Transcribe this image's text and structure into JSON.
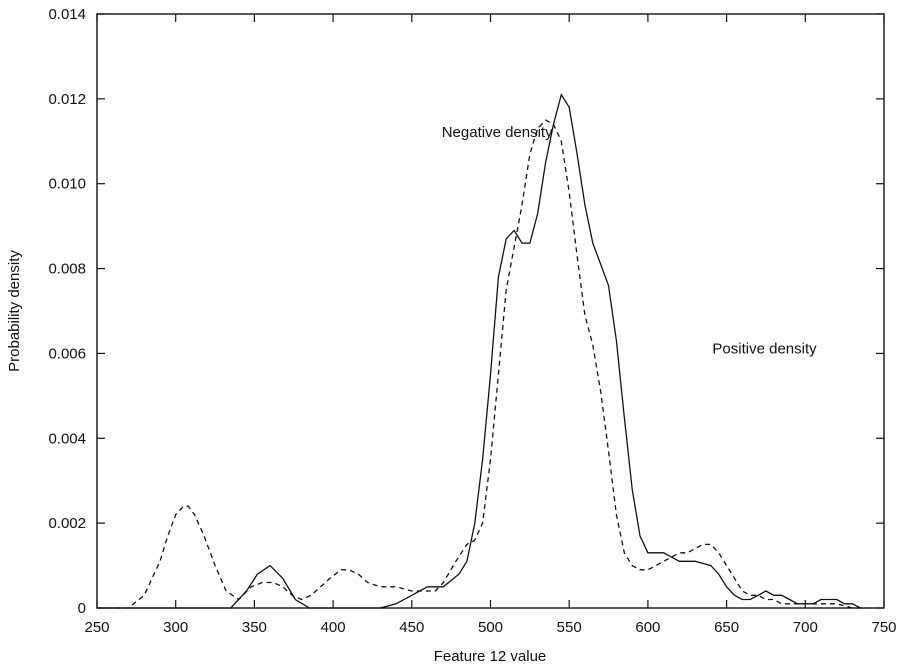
{
  "chart_data": {
    "type": "line",
    "title": "",
    "xlabel": "Feature 12 value",
    "ylabel": "Probability density",
    "xlim": [
      250,
      750
    ],
    "ylim": [
      0,
      0.014
    ],
    "grid": false,
    "legend": "none",
    "x_ticks": [
      250,
      300,
      350,
      400,
      450,
      500,
      550,
      600,
      650,
      700,
      750
    ],
    "y_ticks": [
      0,
      0.002,
      0.004,
      0.006,
      0.008,
      0.01,
      0.012,
      0.014
    ],
    "x_tick_labels": [
      "250",
      "300",
      "350",
      "400",
      "450",
      "500",
      "550",
      "600",
      "650",
      "700",
      "750"
    ],
    "y_tick_labels": [
      "0",
      "0.002",
      "0.004",
      "0.006",
      "0.008",
      "0.010",
      "0.012",
      "0.014"
    ],
    "series": [
      {
        "style": "solid",
        "color": "#111111",
        "x": [
          250,
          335,
          345,
          352,
          360,
          368,
          376,
          385,
          430,
          440,
          450,
          460,
          470,
          480,
          485,
          490,
          495,
          500,
          505,
          510,
          515,
          520,
          525,
          530,
          535,
          540,
          545,
          550,
          555,
          560,
          565,
          570,
          575,
          580,
          585,
          590,
          595,
          600,
          605,
          610,
          615,
          620,
          630,
          640,
          645,
          650,
          655,
          660,
          665,
          670,
          675,
          680,
          685,
          690,
          695,
          700,
          705,
          710,
          715,
          720,
          725,
          730,
          735
        ],
        "y": [
          0,
          0,
          0.0004,
          0.0008,
          0.001,
          0.0007,
          0.0002,
          0,
          0,
          0.0001,
          0.0003,
          0.0005,
          0.0005,
          0.0008,
          0.0011,
          0.002,
          0.0035,
          0.0055,
          0.0078,
          0.0087,
          0.0089,
          0.0086,
          0.0086,
          0.0093,
          0.0105,
          0.0114,
          0.0121,
          0.0118,
          0.0107,
          0.0095,
          0.0086,
          0.0081,
          0.0076,
          0.0063,
          0.0045,
          0.0028,
          0.0017,
          0.0013,
          0.0013,
          0.0013,
          0.0012,
          0.0011,
          0.0011,
          0.001,
          0.0008,
          0.0005,
          0.0003,
          0.0002,
          0.0002,
          0.0003,
          0.0004,
          0.0003,
          0.0003,
          0.0002,
          0.0001,
          0.0001,
          0.0001,
          0.0002,
          0.0002,
          0.0002,
          0.0001,
          0.0001,
          0
        ]
      },
      {
        "style": "dashed",
        "color": "#111111",
        "x": [
          250,
          270,
          280,
          290,
          295,
          300,
          305,
          308,
          312,
          318,
          325,
          332,
          340,
          348,
          355,
          362,
          368,
          374,
          380,
          386,
          392,
          398,
          405,
          410,
          416,
          422,
          430,
          440,
          450,
          460,
          465,
          470,
          478,
          485,
          490,
          495,
          500,
          505,
          510,
          515,
          520,
          525,
          530,
          535,
          540,
          545,
          550,
          555,
          560,
          565,
          570,
          575,
          580,
          585,
          590,
          595,
          600,
          605,
          610,
          615,
          620,
          625,
          630,
          635,
          640,
          645,
          650,
          655,
          660,
          665,
          670,
          675,
          680,
          685,
          690,
          700,
          710,
          720,
          730,
          740
        ],
        "y": [
          0,
          0,
          0.0003,
          0.0011,
          0.0017,
          0.0022,
          0.0024,
          0.0024,
          0.0022,
          0.0017,
          0.001,
          0.0004,
          0.0002,
          0.0005,
          0.0006,
          0.0006,
          0.0005,
          0.0003,
          0.0002,
          0.0003,
          0.0005,
          0.0007,
          0.0009,
          0.0009,
          0.0008,
          0.0006,
          0.0005,
          0.0005,
          0.0004,
          0.0004,
          0.0004,
          0.0006,
          0.0011,
          0.0015,
          0.0016,
          0.002,
          0.0035,
          0.0055,
          0.0075,
          0.0085,
          0.0095,
          0.0107,
          0.0113,
          0.0115,
          0.0114,
          0.011,
          0.0098,
          0.0083,
          0.0069,
          0.0062,
          0.0051,
          0.0037,
          0.0022,
          0.0013,
          0.001,
          0.0009,
          0.0009,
          0.001,
          0.0011,
          0.0012,
          0.0013,
          0.0013,
          0.0014,
          0.0015,
          0.0015,
          0.0013,
          0.001,
          0.0007,
          0.0004,
          0.0003,
          0.0003,
          0.0002,
          0.0002,
          0.0001,
          0.0001,
          0.0001,
          0.0001,
          0.0001,
          0,
          0
        ]
      }
    ],
    "annotations": [
      {
        "text": "Negative density",
        "x": 469,
        "y": 0.0111
      },
      {
        "text": "Positive density",
        "x": 641,
        "y": 0.006
      }
    ]
  }
}
